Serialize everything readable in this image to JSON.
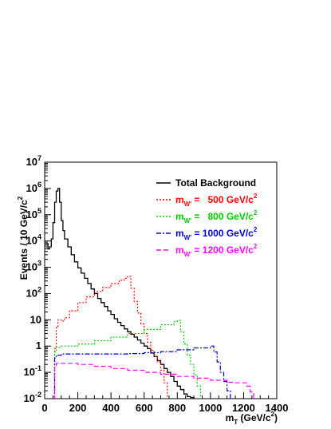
{
  "chart_data": {
    "type": "line",
    "title": "",
    "xlabel": "m_T (GeV/c^2)",
    "ylabel": "Events / 10 GeV/c^2",
    "xlim": [
      0,
      1400
    ],
    "ylim": [
      0.01,
      10000000
    ],
    "yscale": "log",
    "grid": false,
    "legend_position": "top-right",
    "x_ticks": [
      0,
      200,
      400,
      600,
      800,
      1000,
      1200,
      1400
    ],
    "y_ticks": [
      0.01,
      0.1,
      1,
      10,
      100,
      1000,
      10000,
      100000,
      1000000,
      10000000
    ],
    "series": [
      {
        "name": "Total Background",
        "color": "#000000",
        "style": "solid",
        "points": [
          [
            10,
            8000
          ],
          [
            20,
            5000
          ],
          [
            30,
            6000
          ],
          [
            40,
            12000
          ],
          [
            50,
            50000
          ],
          [
            60,
            300000
          ],
          [
            70,
            800000
          ],
          [
            80,
            1000000
          ],
          [
            90,
            300000
          ],
          [
            100,
            60000
          ],
          [
            110,
            25000
          ],
          [
            120,
            12000
          ],
          [
            140,
            6000
          ],
          [
            160,
            3000
          ],
          [
            180,
            1600
          ],
          [
            200,
            950
          ],
          [
            220,
            600
          ],
          [
            240,
            380
          ],
          [
            260,
            240
          ],
          [
            280,
            150
          ],
          [
            300,
            100
          ],
          [
            320,
            65
          ],
          [
            340,
            45
          ],
          [
            360,
            32
          ],
          [
            380,
            22
          ],
          [
            400,
            16
          ],
          [
            420,
            11
          ],
          [
            440,
            8
          ],
          [
            460,
            6
          ],
          [
            480,
            4.5
          ],
          [
            500,
            3.5
          ],
          [
            520,
            2.8
          ],
          [
            540,
            2.2
          ],
          [
            560,
            1.7
          ],
          [
            580,
            1.3
          ],
          [
            600,
            1.0
          ],
          [
            620,
            0.8
          ],
          [
            640,
            0.55
          ],
          [
            660,
            0.4
          ],
          [
            680,
            0.28
          ],
          [
            700,
            0.2
          ],
          [
            720,
            0.14
          ],
          [
            740,
            0.1
          ],
          [
            760,
            0.07
          ],
          [
            780,
            0.045
          ],
          [
            800,
            0.03
          ],
          [
            820,
            0.022
          ],
          [
            840,
            0.015
          ],
          [
            860,
            0.012
          ],
          [
            880,
            0.011
          ],
          [
            900,
            0.01
          ]
        ]
      },
      {
        "name": "m_W' = 500 GeV/c^2",
        "color": "#ff0000",
        "style": "dotted",
        "points": [
          [
            50,
            0.01
          ],
          [
            60,
            0.8
          ],
          [
            70,
            5
          ],
          [
            80,
            10
          ],
          [
            100,
            9
          ],
          [
            120,
            12
          ],
          [
            150,
            22
          ],
          [
            200,
            45
          ],
          [
            250,
            75
          ],
          [
            300,
            120
          ],
          [
            350,
            170
          ],
          [
            400,
            240
          ],
          [
            450,
            320
          ],
          [
            480,
            380
          ],
          [
            500,
            450
          ],
          [
            520,
            160
          ],
          [
            540,
            50
          ],
          [
            560,
            18
          ],
          [
            580,
            7
          ],
          [
            600,
            3
          ],
          [
            620,
            1.4
          ],
          [
            640,
            0.7
          ],
          [
            660,
            0.4
          ],
          [
            680,
            0.25
          ],
          [
            700,
            0.12
          ],
          [
            720,
            0.04
          ],
          [
            740,
            0.01
          ]
        ]
      },
      {
        "name": "m_W' = 800 GeV/c^2",
        "color": "#00cc00",
        "style": "dotted",
        "points": [
          [
            50,
            0.01
          ],
          [
            60,
            0.6
          ],
          [
            70,
            0.9
          ],
          [
            100,
            1.0
          ],
          [
            200,
            1.2
          ],
          [
            300,
            1.6
          ],
          [
            400,
            2.2
          ],
          [
            500,
            3
          ],
          [
            600,
            4.3
          ],
          [
            700,
            6.5
          ],
          [
            780,
            8.5
          ],
          [
            800,
            9.5
          ],
          [
            820,
            3.5
          ],
          [
            840,
            1.2
          ],
          [
            860,
            0.45
          ],
          [
            880,
            0.2
          ],
          [
            900,
            0.08
          ],
          [
            920,
            0.03
          ],
          [
            940,
            0.01
          ]
        ]
      },
      {
        "name": "m_W' = 1000 GeV/c^2",
        "color": "#0000cc",
        "style": "dashdot",
        "points": [
          [
            50,
            0.01
          ],
          [
            60,
            0.35
          ],
          [
            70,
            0.45
          ],
          [
            100,
            0.5
          ],
          [
            200,
            0.5
          ],
          [
            300,
            0.5
          ],
          [
            400,
            0.5
          ],
          [
            500,
            0.52
          ],
          [
            600,
            0.56
          ],
          [
            700,
            0.62
          ],
          [
            800,
            0.72
          ],
          [
            900,
            0.85
          ],
          [
            1000,
            1.0
          ],
          [
            1020,
            0.6
          ],
          [
            1040,
            0.25
          ],
          [
            1060,
            0.1
          ],
          [
            1080,
            0.045
          ],
          [
            1100,
            0.02
          ],
          [
            1120,
            0.01
          ]
        ]
      },
      {
        "name": "m_W' = 1200 GeV/c^2",
        "color": "#ff00ff",
        "style": "dashed",
        "points": [
          [
            50,
            0.01
          ],
          [
            60,
            0.18
          ],
          [
            70,
            0.22
          ],
          [
            100,
            0.22
          ],
          [
            200,
            0.2
          ],
          [
            300,
            0.17
          ],
          [
            400,
            0.14
          ],
          [
            500,
            0.12
          ],
          [
            600,
            0.1
          ],
          [
            700,
            0.085
          ],
          [
            800,
            0.07
          ],
          [
            900,
            0.06
          ],
          [
            1000,
            0.05
          ],
          [
            1100,
            0.042
          ],
          [
            1150,
            0.04
          ],
          [
            1200,
            0.04
          ],
          [
            1220,
            0.03
          ],
          [
            1240,
            0.018
          ],
          [
            1260,
            0.01
          ]
        ]
      }
    ]
  },
  "legend": {
    "entries": [
      {
        "label": "Total Background",
        "color": "#000000",
        "style": "solid"
      },
      {
        "label": "m_W' =   500 GeV/c^2",
        "color": "#ff0000",
        "style": "dotted"
      },
      {
        "label": "m_W' =   800 GeV/c^2",
        "color": "#00cc00",
        "style": "dotted"
      },
      {
        "label": "m_W' = 1000 GeV/c^2",
        "color": "#0000cc",
        "style": "dashdot"
      },
      {
        "label": "m_W' = 1200 GeV/c^2",
        "color": "#ff00ff",
        "style": "dashed"
      }
    ]
  }
}
